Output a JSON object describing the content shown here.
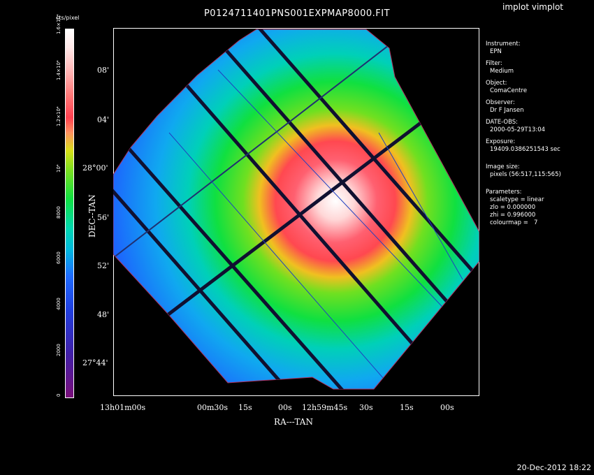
{
  "window": {
    "title": "P0124711401PNS001EXPMAP8000.FIT",
    "app_label": "implot vimplot",
    "timestamp": "20-Dec-2012 18:22"
  },
  "colorbar": {
    "unit": "cts/pixel",
    "ticks": [
      "0",
      "2000",
      "4000",
      "6000",
      "8000",
      "10⁴",
      "1.2×10⁴",
      "1.4×10⁴",
      "1.6×10⁴"
    ],
    "colors": [
      "#7a0f7a",
      "#3a2fbf",
      "#1f5cff",
      "#00c8d0",
      "#19e01a",
      "#c8e010",
      "#ff4040",
      "#ffc8c8",
      "#ffffff"
    ]
  },
  "axes": {
    "ylabel": "DEC--TAN",
    "xlabel": "RA---TAN",
    "yticks": [
      "08'",
      "04'",
      "28°00'",
      "56'",
      "52'",
      "48'",
      "27°44'"
    ],
    "xticks": [
      "13h01m00s",
      "00m30s",
      "15s",
      "00s",
      "12h59m45s",
      "30s",
      "15s",
      "00s"
    ]
  },
  "panel": {
    "instrument_label": "Instrument:",
    "instrument": "EPN",
    "filter_label": "Filter:",
    "filter": "Medium",
    "object_label": "Object:",
    "object": "ComaCentre",
    "observer_label": "Observer:",
    "observer": "Dr F Jansen",
    "date_label": "DATE-OBS:",
    "date": "2000-05-29T13:04",
    "exposure_label": "Exposure:",
    "exposure": "19409.0386251543 sec",
    "imagesize_label": "Image size:",
    "imagesize": "pixels (56:517,115:565)",
    "params_label": "Parameters:",
    "param_scale": "scaletype = linear",
    "param_zlo": "zlo = 0.000000",
    "param_zhi": "zhi = 0.996000",
    "param_cmap": "colourmap =   7"
  }
}
